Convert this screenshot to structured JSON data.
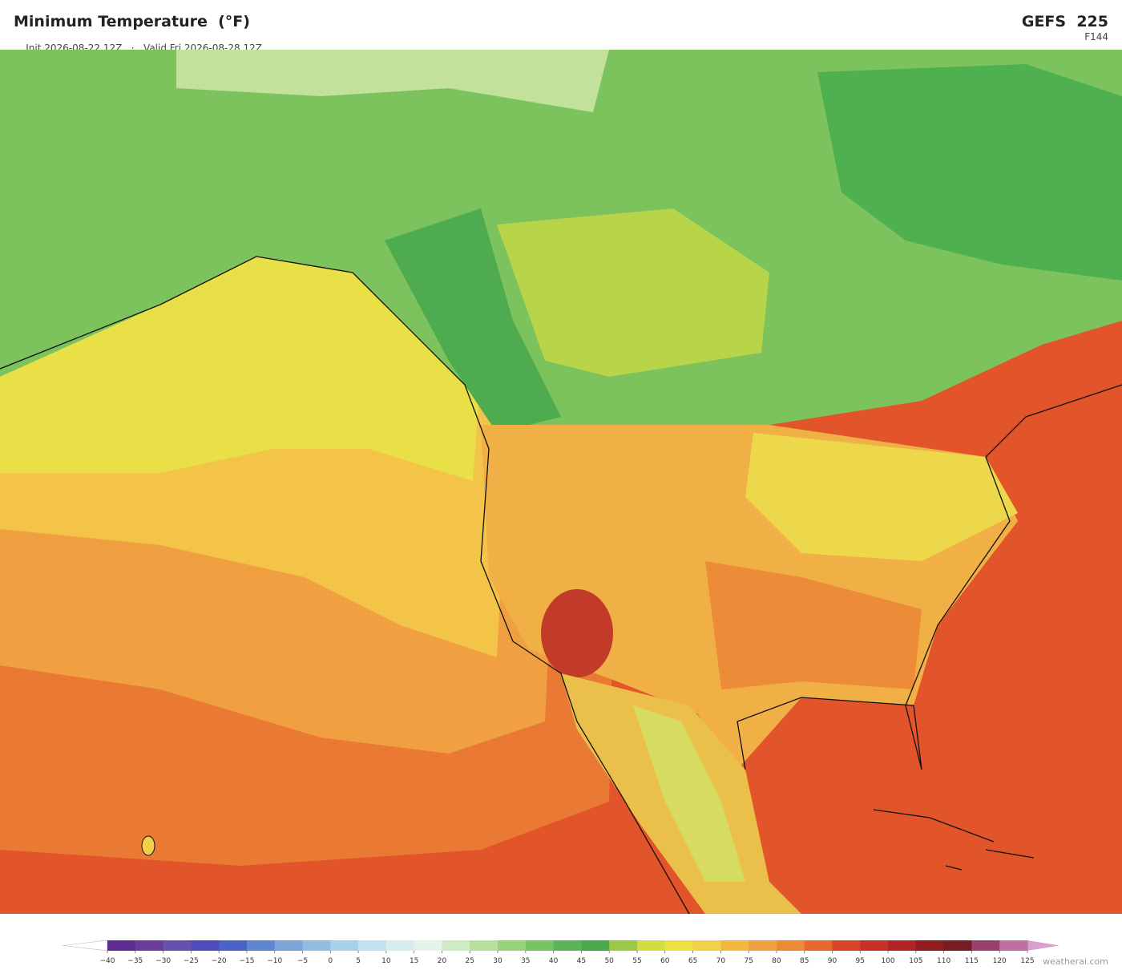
{
  "header": {
    "title": "Minimum Temperature  (°F)",
    "init": "Init 2026-08-22 12Z",
    "separator": "·",
    "valid": "Valid Fri 2026-08-28 12Z",
    "model": "GEFS  225",
    "forecast_hour": "F144"
  },
  "colorbar": {
    "ticks": [
      {
        "value": -40,
        "label": "−40"
      },
      {
        "value": -35,
        "label": "−35"
      },
      {
        "value": -30,
        "label": "−30"
      },
      {
        "value": -25,
        "label": "−25"
      },
      {
        "value": -20,
        "label": "−20"
      },
      {
        "value": -15,
        "label": "−15"
      },
      {
        "value": -10,
        "label": "−10"
      },
      {
        "value": -5,
        "label": "−5"
      },
      0,
      5,
      10,
      15,
      20,
      25,
      30,
      35,
      40,
      45,
      50,
      55,
      60,
      65,
      70,
      75,
      80,
      85,
      90,
      95,
      100,
      105,
      110,
      115,
      120,
      125
    ],
    "colors": [
      "#5d2d91",
      "#6a3d9a",
      "#6650b0",
      "#4d4dbf",
      "#4a63c8",
      "#5f86d0",
      "#7ba4d8",
      "#93bde0",
      "#a8d1e8",
      "#c2e1ee",
      "#d8ecf0",
      "#e4f2e8",
      "#d0ebc4",
      "#b8e09c",
      "#98d27a",
      "#78c465",
      "#5bb556",
      "#4aaa4a",
      "#9bc846",
      "#d4dc44",
      "#ece046",
      "#f2d04a",
      "#f4b840",
      "#f0a040",
      "#ec8a35",
      "#e8682e",
      "#d8462a",
      "#c83226",
      "#b02424",
      "#901c20",
      "#7a1a22",
      "#9a4070",
      "#c070a0"
    ],
    "under_color": "#ffffff",
    "over_color": "#d8a0d0"
  },
  "watermark": "weatherai.com"
}
